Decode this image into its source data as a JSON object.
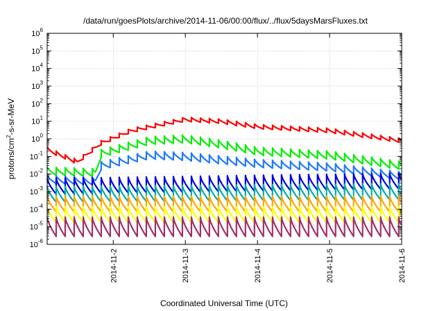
{
  "chart_data": {
    "type": "line",
    "title": "/data/run/goesPlots/archive/2014-11-06/00:00/flux/../flux/5daysMarsFluxes.txt",
    "xlabel": "Coordinated Universal Time (UTC)",
    "ylabel": "protons/cm2-s-sr-MeV",
    "ylabel_parts": {
      "before": "protons/cm",
      "sup": "2",
      "after": "-s-sr-MeV"
    },
    "y_scale": "log",
    "ylim": [
      1e-06,
      1000000.0
    ],
    "y_ticks": [
      {
        "base": "10",
        "exp": "-6",
        "value": 1e-06
      },
      {
        "base": "10",
        "exp": "-5",
        "value": 1e-05
      },
      {
        "base": "10",
        "exp": "-4",
        "value": 0.0001
      },
      {
        "base": "10",
        "exp": "-3",
        "value": 0.001
      },
      {
        "base": "10",
        "exp": "-2",
        "value": 0.01
      },
      {
        "base": "10",
        "exp": "-1",
        "value": 0.1
      },
      {
        "base": "10",
        "exp": "0",
        "value": 1
      },
      {
        "base": "10",
        "exp": "1",
        "value": 10
      },
      {
        "base": "10",
        "exp": "2",
        "value": 100
      },
      {
        "base": "10",
        "exp": "3",
        "value": 1000
      },
      {
        "base": "10",
        "exp": "4",
        "value": 10000
      },
      {
        "base": "10",
        "exp": "5",
        "value": 100000
      },
      {
        "base": "10",
        "exp": "6",
        "value": 1000000
      }
    ],
    "xlim": [
      "2014-11-01T02:00",
      "2014-11-06T00:00"
    ],
    "x_ticks": [
      {
        "label": "2014-11-2",
        "value": "2014-11-02T00:00"
      },
      {
        "label": "2014-11-3",
        "value": "2014-11-03T00:00"
      },
      {
        "label": "2014-11-4",
        "value": "2014-11-04T00:00"
      },
      {
        "label": "2014-11-5",
        "value": "2014-11-05T00:00"
      },
      {
        "label": "2014-11-6",
        "value": "2014-11-06T00:00"
      }
    ],
    "grid": true,
    "legend": "none",
    "sawtooth_period_hours": 3,
    "series": [
      {
        "color": "#ff0000",
        "values": [
          {
            "x": "2014-11-01T02:00",
            "y": 0.25
          },
          {
            "x": "2014-11-01T12:00",
            "y": 0.05
          },
          {
            "x": "2014-11-01T20:00",
            "y": 0.6
          },
          {
            "x": "2014-11-02T06:00",
            "y": 3
          },
          {
            "x": "2014-11-03T00:00",
            "y": 13
          },
          {
            "x": "2014-11-03T12:00",
            "y": 10
          },
          {
            "x": "2014-11-04T00:00",
            "y": 5
          },
          {
            "x": "2014-11-05T00:00",
            "y": 3
          },
          {
            "x": "2014-11-06T00:00",
            "y": 0.8
          }
        ]
      },
      {
        "color": "#00ee00",
        "values": [
          {
            "x": "2014-11-01T02:00",
            "y": 0.015
          },
          {
            "x": "2014-11-01T18:00",
            "y": 0.012
          },
          {
            "x": "2014-11-01T20:00",
            "y": 0.15
          },
          {
            "x": "2014-11-02T12:00",
            "y": 0.8
          },
          {
            "x": "2014-11-03T00:00",
            "y": 1
          },
          {
            "x": "2014-11-03T12:00",
            "y": 0.5
          },
          {
            "x": "2014-11-04T00:00",
            "y": 0.2
          },
          {
            "x": "2014-11-05T00:00",
            "y": 0.12
          },
          {
            "x": "2014-11-06T00:00",
            "y": 0.03
          }
        ]
      },
      {
        "color": "#1e78ff",
        "values": [
          {
            "x": "2014-11-01T02:00",
            "y": 0.005
          },
          {
            "x": "2014-11-01T18:00",
            "y": 0.004
          },
          {
            "x": "2014-11-01T20:00",
            "y": 0.03
          },
          {
            "x": "2014-11-02T12:00",
            "y": 0.12
          },
          {
            "x": "2014-11-03T00:00",
            "y": 0.1
          },
          {
            "x": "2014-11-04T00:00",
            "y": 0.04
          },
          {
            "x": "2014-11-05T00:00",
            "y": 0.025
          },
          {
            "x": "2014-11-06T00:00",
            "y": 0.008
          }
        ]
      },
      {
        "color": "#0000dd",
        "values": [
          {
            "x": "2014-11-01T02:00",
            "y": 0.002
          },
          {
            "x": "2014-11-06T00:00",
            "y": 0.004
          }
        ]
      },
      {
        "color": "#00aaaa",
        "values": [
          {
            "x": "2014-11-01T02:00",
            "y": 0.0007
          },
          {
            "x": "2014-11-06T00:00",
            "y": 0.001
          }
        ]
      },
      {
        "color": "#ffa500",
        "values": [
          {
            "x": "2014-11-01T02:00",
            "y": 0.0002
          },
          {
            "x": "2014-11-06T00:00",
            "y": 0.0002
          }
        ]
      },
      {
        "color": "#ffff00",
        "values": [
          {
            "x": "2014-11-01T02:00",
            "y": 5e-05
          },
          {
            "x": "2014-11-06T00:00",
            "y": 5e-05
          }
        ]
      },
      {
        "color": "#a0306a",
        "values": [
          {
            "x": "2014-11-01T02:00",
            "y": 1e-05
          },
          {
            "x": "2014-11-06T00:00",
            "y": 1e-05
          }
        ]
      }
    ],
    "sawtooth_depth_decades": [
      0.25,
      0.45,
      0.45,
      0.9,
      0.9,
      0.9,
      0.9,
      1.1
    ]
  }
}
